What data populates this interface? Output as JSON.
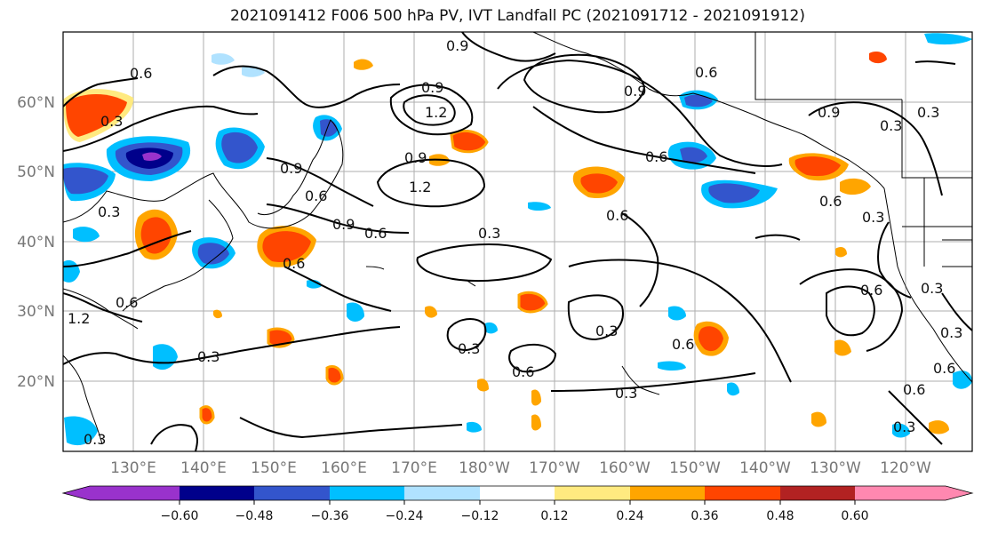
{
  "title": "2021091412 F006 500 hPa PV, IVT Landfall PC (2021091712 - 2021091912)",
  "lat_labels": [
    "60°N",
    "50°N",
    "40°N",
    "30°N",
    "20°N"
  ],
  "lon_labels": [
    "130°E",
    "140°E",
    "150°E",
    "160°E",
    "170°E",
    "180°W",
    "170°W",
    "160°W",
    "150°W",
    "140°W",
    "130°W",
    "120°W"
  ],
  "colorbar": {
    "colors": [
      "#9932cc",
      "#00008b",
      "#3355cc",
      "#00bfff",
      "#b0e2ff",
      "#ffffff",
      "#ffea80",
      "#ffa500",
      "#ff4500",
      "#b22222",
      "#ff88b0"
    ],
    "tick_labels": [
      "−0.60",
      "−0.48",
      "−0.36",
      "−0.24",
      "−0.12",
      "0.12",
      "0.24",
      "0.36",
      "0.48",
      "0.60"
    ]
  },
  "contour_labels": [
    "0.9",
    "0.6",
    "0.9",
    "1.2",
    "0.9",
    "1.2",
    "0.6",
    "0.3",
    "0.6",
    "0.9",
    "0.3",
    "0.3",
    "0.6",
    "0.9",
    "0.6",
    "0.3",
    "0.6",
    "0.9",
    "0.6",
    "0.3",
    "0.3",
    "0.6",
    "0.3",
    "0.6",
    "0.3",
    "1.2",
    "0.3",
    "0.3",
    "0.6",
    "0.6",
    "0.3",
    "0.3",
    "0.6",
    "0.6",
    "0.3",
    "0.6",
    "0.3",
    "0.9"
  ]
}
